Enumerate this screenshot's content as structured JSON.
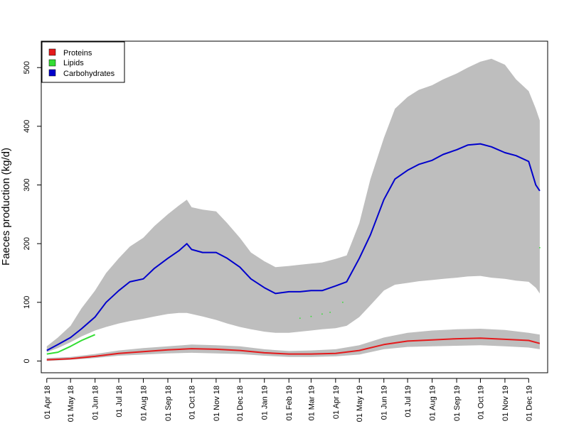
{
  "chart_data": {
    "type": "line",
    "title": "",
    "xlabel": "",
    "ylabel": "Faeces production (kg/d)",
    "ylim": [
      -20,
      545
    ],
    "xlim": [
      "2018-03-25",
      "2019-12-25"
    ],
    "grid": false,
    "legend": {
      "position": "top-left"
    },
    "y_ticks": [
      0,
      100,
      200,
      300,
      400,
      500
    ],
    "x_ticks": [
      {
        "date": "2018-04-01",
        "label": "01 Apr 18"
      },
      {
        "date": "2018-05-01",
        "label": "01 May 18"
      },
      {
        "date": "2018-06-01",
        "label": "01 Jun 18"
      },
      {
        "date": "2018-07-01",
        "label": "01 Jul 18"
      },
      {
        "date": "2018-08-01",
        "label": "01 Aug 18"
      },
      {
        "date": "2018-09-01",
        "label": "01 Sep 18"
      },
      {
        "date": "2018-10-01",
        "label": "01 Oct 18"
      },
      {
        "date": "2018-11-01",
        "label": "01 Nov 18"
      },
      {
        "date": "2018-12-01",
        "label": "01 Dec 18"
      },
      {
        "date": "2019-01-01",
        "label": "01 Jan 19"
      },
      {
        "date": "2019-02-01",
        "label": "01 Feb 19"
      },
      {
        "date": "2019-03-01",
        "label": "01 Mar 19"
      },
      {
        "date": "2019-04-01",
        "label": "01 Apr 19"
      },
      {
        "date": "2019-05-01",
        "label": "01 May 19"
      },
      {
        "date": "2019-06-01",
        "label": "01 Jun 19"
      },
      {
        "date": "2019-07-01",
        "label": "01 Jul 19"
      },
      {
        "date": "2019-08-01",
        "label": "01 Aug 19"
      },
      {
        "date": "2019-09-01",
        "label": "01 Sep 19"
      },
      {
        "date": "2019-10-01",
        "label": "01 Oct 19"
      },
      {
        "date": "2019-11-01",
        "label": "01 Nov 19"
      },
      {
        "date": "2019-12-01",
        "label": "01 Dec 19"
      }
    ],
    "series": [
      {
        "name": "Proteins",
        "color": "#e41a1c",
        "x": [
          "2018-04-01",
          "2018-05-01",
          "2018-06-01",
          "2018-07-01",
          "2018-08-01",
          "2018-09-01",
          "2018-10-01",
          "2018-11-01",
          "2018-12-01",
          "2019-01-01",
          "2019-02-01",
          "2019-03-01",
          "2019-04-01",
          "2019-05-01",
          "2019-06-01",
          "2019-07-01",
          "2019-08-01",
          "2019-09-01",
          "2019-10-01",
          "2019-11-01",
          "2019-12-01",
          "2019-12-15"
        ],
        "values": [
          2,
          4,
          8,
          13,
          16,
          19,
          21,
          20,
          18,
          14,
          12,
          12,
          13,
          18,
          28,
          34,
          36,
          38,
          39,
          37,
          35,
          30
        ],
        "band_lower": [
          0,
          2,
          5,
          9,
          11,
          13,
          14,
          13,
          12,
          9,
          7,
          7,
          8,
          11,
          20,
          24,
          25,
          26,
          27,
          25,
          23,
          20
        ],
        "band_upper": [
          5,
          7,
          12,
          18,
          22,
          25,
          28,
          27,
          25,
          20,
          17,
          18,
          20,
          27,
          40,
          48,
          52,
          54,
          55,
          53,
          48,
          45
        ]
      },
      {
        "name": "Lipids",
        "color": "#33dd33",
        "x": [
          "2018-04-01",
          "2018-04-15",
          "2018-05-01",
          "2018-05-15",
          "2018-06-01"
        ],
        "values": [
          12,
          15,
          25,
          35,
          45
        ],
        "band_lower": [],
        "band_upper": [],
        "points": [
          {
            "x": "2019-02-15",
            "y": 73
          },
          {
            "x": "2019-03-01",
            "y": 76
          },
          {
            "x": "2019-03-15",
            "y": 80
          },
          {
            "x": "2019-03-25",
            "y": 83
          },
          {
            "x": "2019-04-10",
            "y": 100
          },
          {
            "x": "2019-12-15",
            "y": 193
          }
        ]
      },
      {
        "name": "Carbohydrates",
        "color": "#0000cc",
        "x": [
          "2018-04-01",
          "2018-04-15",
          "2018-05-01",
          "2018-05-15",
          "2018-06-01",
          "2018-06-15",
          "2018-07-01",
          "2018-07-15",
          "2018-08-01",
          "2018-08-15",
          "2018-09-01",
          "2018-09-15",
          "2018-09-25",
          "2018-10-01",
          "2018-10-15",
          "2018-11-01",
          "2018-11-15",
          "2018-12-01",
          "2018-12-15",
          "2019-01-01",
          "2019-01-15",
          "2019-02-01",
          "2019-02-15",
          "2019-03-01",
          "2019-03-15",
          "2019-04-01",
          "2019-04-15",
          "2019-05-01",
          "2019-05-15",
          "2019-06-01",
          "2019-06-15",
          "2019-07-01",
          "2019-07-15",
          "2019-08-01",
          "2019-08-15",
          "2019-09-01",
          "2019-09-15",
          "2019-10-01",
          "2019-10-15",
          "2019-11-01",
          "2019-11-15",
          "2019-12-01",
          "2019-12-10",
          "2019-12-15"
        ],
        "values": [
          18,
          28,
          40,
          55,
          75,
          100,
          120,
          135,
          140,
          158,
          175,
          188,
          200,
          190,
          185,
          185,
          175,
          160,
          140,
          125,
          115,
          118,
          118,
          120,
          120,
          128,
          135,
          175,
          215,
          275,
          310,
          325,
          335,
          342,
          352,
          360,
          368,
          370,
          365,
          355,
          350,
          340,
          300,
          290
        ],
        "band_lower": [
          15,
          22,
          32,
          42,
          52,
          58,
          64,
          68,
          72,
          76,
          80,
          82,
          82,
          80,
          76,
          70,
          64,
          58,
          54,
          50,
          48,
          48,
          50,
          52,
          54,
          56,
          60,
          75,
          95,
          120,
          130,
          133,
          136,
          138,
          140,
          142,
          144,
          145,
          142,
          140,
          137,
          135,
          125,
          115
        ],
        "band_upper": [
          25,
          40,
          60,
          90,
          120,
          150,
          175,
          195,
          210,
          230,
          250,
          265,
          275,
          262,
          258,
          255,
          235,
          210,
          185,
          170,
          160,
          162,
          164,
          166,
          168,
          174,
          180,
          235,
          310,
          380,
          430,
          450,
          462,
          470,
          480,
          490,
          500,
          510,
          515,
          505,
          480,
          460,
          430,
          410
        ]
      }
    ]
  }
}
